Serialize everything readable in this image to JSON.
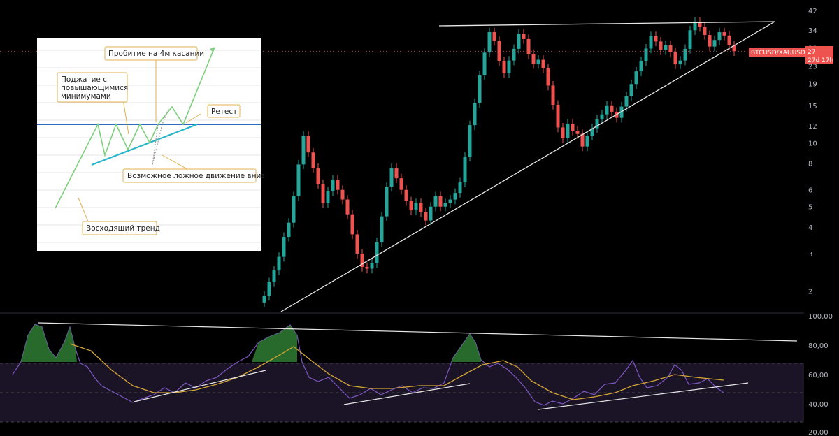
{
  "chart_data": [
    {
      "type": "candlestick",
      "symbol": "BTCUSD/XAUUSD",
      "y_scale": "log",
      "y_ticks": [
        "42",
        "34",
        "28",
        "23",
        "19",
        "15",
        "12",
        "10",
        "8",
        "6",
        "5",
        "4",
        "3",
        "2"
      ],
      "last_price": "27",
      "countdown": "27d 17h",
      "up_color": "#26a69a",
      "down_color": "#ef5350",
      "closes": [
        1.9,
        2.2,
        2.5,
        2.9,
        3.6,
        4.2,
        5.6,
        7.9,
        10.8,
        9.0,
        7.6,
        6.4,
        5.2,
        5.9,
        6.7,
        6.0,
        5.4,
        4.6,
        3.7,
        3.0,
        2.6,
        2.55,
        2.7,
        3.4,
        4.5,
        6.2,
        7.6,
        6.8,
        6.0,
        5.3,
        4.8,
        5.2,
        4.7,
        4.3,
        5.0,
        5.6,
        5.0,
        5.2,
        5.4,
        5.8,
        6.5,
        8.6,
        12.1,
        15.4,
        20.8,
        26.6,
        33.2,
        30.2,
        24.2,
        21.3,
        24.4,
        27.7,
        32.7,
        30.8,
        26.2,
        23.5,
        24.6,
        22.4,
        18.6,
        15.1,
        11.8,
        10.5,
        12.3,
        11.4,
        11.0,
        9.6,
        10.8,
        11.7,
        12.9,
        13.6,
        15.0,
        14.0,
        13.1,
        14.8,
        16.6,
        18.9,
        21.7,
        24.2,
        27.8,
        31.8,
        30.0,
        27.3,
        28.9,
        26.7,
        23.4,
        24.4,
        27.7,
        33.9,
        37.2,
        35.1,
        32.2,
        28.4,
        30.5,
        33.2,
        32.0,
        28.8,
        27.0
      ],
      "resistance_level": "34"
    },
    {
      "type": "line",
      "y_ticks": [
        "100,00",
        "80,00",
        "60,00",
        "40,00",
        "20,00"
      ],
      "band": [
        30,
        70
      ],
      "midline": 50,
      "rsi_color": "#7e57c2",
      "ma_color": "#d4a537"
    },
    {
      "type": "diagram",
      "labels": {
        "breakout": "Пробитие на 4м касании",
        "squeeze": "Поджатие с повышающимися минимумами",
        "retest": "Ретест",
        "false_move": "Возможное ложное движение вниз",
        "uptrend": "Восходящий тренд"
      }
    }
  ]
}
